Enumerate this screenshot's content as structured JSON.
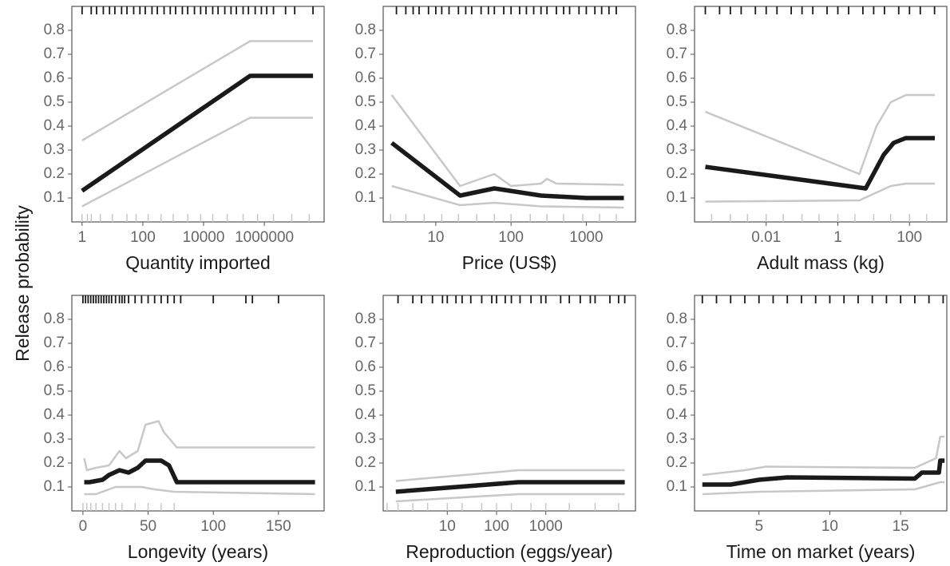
{
  "ylabel": "Release probability",
  "chart_data": [
    {
      "type": "line",
      "xlabel": "Quantity imported",
      "log_x": true,
      "xlim": [
        0.46,
        93000000
      ],
      "xticks": [
        1,
        100,
        10000,
        1000000
      ],
      "ylim": [
        0,
        0.9
      ],
      "yticks": [
        0.1,
        0.2,
        0.3,
        0.4,
        0.5,
        0.6,
        0.7,
        0.8
      ],
      "series": [
        {
          "color": "#c8c8c8",
          "x": [
            1,
            340000,
            40000000
          ],
          "values": [
            0.34,
            0.755,
            0.755
          ]
        },
        {
          "color": "#c8c8c8",
          "x": [
            1,
            340000,
            40000000
          ],
          "values": [
            0.065,
            0.435,
            0.435
          ]
        },
        {
          "color": "#1a1a1a",
          "x": [
            1,
            340000,
            40000000
          ],
          "values": [
            0.13,
            0.61,
            0.61
          ]
        }
      ],
      "rug_top_color": "#1a1a1a",
      "rug_bottom_color": "#c8c8c8",
      "rug_top": [
        1,
        2,
        3,
        5,
        8,
        12,
        20,
        30,
        50,
        80,
        120,
        200,
        300,
        500,
        800,
        1200,
        2000,
        3000,
        5000,
        8000,
        12000,
        20000,
        30000,
        50000,
        80000,
        120000,
        200000,
        300000,
        500000,
        800000,
        1200000,
        2000000,
        5000000,
        10000000,
        40000000
      ],
      "rug_bottom": [
        1,
        1.5,
        2,
        4,
        10,
        30,
        60,
        150,
        400,
        1000,
        3000,
        8000,
        20000,
        60000,
        200000,
        600000,
        2000000,
        8000000,
        30000000
      ]
    },
    {
      "type": "line",
      "xlabel": "Price (US$)",
      "log_x": true,
      "xlim": [
        2,
        4500
      ],
      "xticks": [
        10,
        100,
        1000
      ],
      "ylim": [
        0,
        0.9
      ],
      "yticks": [
        0.1,
        0.2,
        0.3,
        0.4,
        0.5,
        0.6,
        0.7,
        0.8
      ],
      "series": [
        {
          "color": "#c8c8c8",
          "x": [
            2.6,
            21,
            60,
            100,
            250,
            300,
            400,
            3160
          ],
          "values": [
            0.53,
            0.15,
            0.2,
            0.15,
            0.16,
            0.18,
            0.16,
            0.155
          ]
        },
        {
          "color": "#c8c8c8",
          "x": [
            2.6,
            21,
            60,
            250,
            3160
          ],
          "values": [
            0.15,
            0.07,
            0.08,
            0.065,
            0.06
          ]
        },
        {
          "color": "#1a1a1a",
          "x": [
            2.6,
            21,
            60,
            250,
            1000,
            3160
          ],
          "values": [
            0.33,
            0.11,
            0.14,
            0.11,
            0.1,
            0.1
          ]
        }
      ],
      "rug_top_color": "#1a1a1a",
      "rug_bottom_color": "#c8c8c8",
      "rug_top": [
        3,
        4,
        5,
        6,
        8,
        10,
        12,
        15,
        20,
        25,
        30,
        40,
        50,
        60,
        80,
        100,
        130,
        160,
        200,
        250,
        300,
        400,
        500,
        600,
        800,
        1000,
        1300,
        1600,
        2000,
        2500
      ],
      "rug_bottom": [
        2.5,
        4,
        7,
        12,
        20,
        35,
        60,
        100,
        180,
        300,
        500,
        900,
        1500,
        2500
      ]
    },
    {
      "type": "line",
      "xlabel": "Adult mass (kg)",
      "log_x": true,
      "xlim": [
        0.0001,
        1100
      ],
      "xticks": [
        0.01,
        1,
        100
      ],
      "ylim": [
        0,
        0.9
      ],
      "yticks": [
        0.1,
        0.2,
        0.3,
        0.4,
        0.5,
        0.6,
        0.7,
        0.8
      ],
      "series": [
        {
          "color": "#c8c8c8",
          "x": [
            0.0002,
            4,
            12,
            30,
            80,
            510
          ],
          "values": [
            0.46,
            0.2,
            0.4,
            0.5,
            0.53,
            0.53
          ]
        },
        {
          "color": "#c8c8c8",
          "x": [
            0.0002,
            4,
            30,
            80,
            510
          ],
          "values": [
            0.085,
            0.09,
            0.15,
            0.16,
            0.16
          ]
        },
        {
          "color": "#1a1a1a",
          "x": [
            0.0002,
            6,
            19,
            36,
            78,
            510
          ],
          "values": [
            0.23,
            0.14,
            0.28,
            0.33,
            0.35,
            0.35
          ]
        }
      ],
      "rug_top_color": "#1a1a1a",
      "rug_bottom_color": "#c8c8c8",
      "rug_top": [
        0.0002,
        0.0005,
        0.001,
        0.002,
        0.005,
        0.01,
        0.02,
        0.05,
        0.1,
        0.2,
        0.5,
        1,
        2,
        5,
        10,
        20,
        50,
        100,
        200,
        500
      ],
      "rug_bottom": [
        0.0003,
        0.001,
        0.003,
        0.01,
        0.03,
        0.1,
        0.3,
        1,
        3,
        10,
        30,
        100,
        300
      ]
    },
    {
      "type": "line",
      "xlabel": "Longevity (years)",
      "log_x": false,
      "xlim": [
        -8.5,
        185
      ],
      "xticks": [
        0,
        50,
        100,
        150
      ],
      "ylim": [
        0,
        0.9
      ],
      "yticks": [
        0.1,
        0.2,
        0.3,
        0.4,
        0.5,
        0.6,
        0.7,
        0.8
      ],
      "series": [
        {
          "color": "#c8c8c8",
          "x": [
            1,
            3,
            10,
            20,
            28,
            33,
            42,
            48,
            58,
            62,
            72,
            178
          ],
          "values": [
            0.22,
            0.17,
            0.18,
            0.19,
            0.25,
            0.22,
            0.25,
            0.36,
            0.375,
            0.33,
            0.265,
            0.265
          ]
        },
        {
          "color": "#c8c8c8",
          "x": [
            1,
            10,
            25,
            45,
            55,
            70,
            178
          ],
          "values": [
            0.07,
            0.07,
            0.1,
            0.1,
            0.09,
            0.08,
            0.07
          ]
        },
        {
          "color": "#1a1a1a",
          "x": [
            1,
            5,
            10,
            15,
            20,
            28,
            35,
            42,
            48,
            55,
            60,
            66,
            72,
            178
          ],
          "values": [
            0.12,
            0.12,
            0.125,
            0.13,
            0.15,
            0.17,
            0.16,
            0.18,
            0.21,
            0.21,
            0.21,
            0.19,
            0.12,
            0.12
          ]
        }
      ],
      "rug_top_color": "#1a1a1a",
      "rug_bottom_color": "#c8c8c8",
      "rug_top": [
        0,
        2,
        4,
        6,
        8,
        10,
        12,
        14,
        16,
        18,
        20,
        22,
        25,
        28,
        30,
        32,
        35,
        40,
        45,
        50,
        55,
        60,
        65,
        70,
        75,
        100,
        125,
        130,
        150
      ],
      "rug_bottom": [
        0,
        3,
        6,
        10,
        15,
        20,
        25,
        30,
        40,
        50,
        60,
        70
      ]
    },
    {
      "type": "line",
      "xlabel": "Reproduction (eggs/year)",
      "log_x": true,
      "xlim": [
        0.5,
        66000
      ],
      "xticks": [
        10,
        100,
        1000
      ],
      "ylim": [
        0,
        0.9
      ],
      "yticks": [
        0.1,
        0.2,
        0.3,
        0.4,
        0.5,
        0.6,
        0.7,
        0.8
      ],
      "series": [
        {
          "color": "#c8c8c8",
          "x": [
            0.9,
            280,
            40000
          ],
          "values": [
            0.125,
            0.17,
            0.17
          ]
        },
        {
          "color": "#c8c8c8",
          "x": [
            0.9,
            280,
            40000
          ],
          "values": [
            0.04,
            0.07,
            0.07
          ]
        },
        {
          "color": "#1a1a1a",
          "x": [
            0.9,
            280,
            40000
          ],
          "values": [
            0.08,
            0.12,
            0.12
          ]
        }
      ],
      "rug_top_color": "#1a1a1a",
      "rug_bottom_color": "#c8c8c8",
      "rug_top": [
        1,
        2,
        3,
        5,
        8,
        10,
        15,
        20,
        30,
        50,
        80,
        100,
        150,
        200,
        300,
        500,
        800,
        1000,
        2000,
        3000,
        5000,
        8000,
        10000,
        20000,
        30000,
        40000
      ],
      "rug_bottom": [
        0.6,
        1,
        2,
        4,
        10,
        20,
        50,
        100,
        200,
        500,
        1000,
        3000,
        10000,
        30000
      ]
    },
    {
      "type": "line",
      "xlabel": "Time on market (years)",
      "log_x": false,
      "xlim": [
        0.45,
        18.26
      ],
      "xticks": [
        5,
        10,
        15
      ],
      "ylim": [
        0,
        0.9
      ],
      "yticks": [
        0.1,
        0.2,
        0.3,
        0.4,
        0.5,
        0.6,
        0.7,
        0.8
      ],
      "series": [
        {
          "color": "#c8c8c8",
          "x": [
            1,
            4,
            5.5,
            16,
            17.5,
            17.8,
            18.1
          ],
          "values": [
            0.15,
            0.17,
            0.185,
            0.18,
            0.22,
            0.31,
            0.31
          ]
        },
        {
          "color": "#c8c8c8",
          "x": [
            1,
            5,
            16,
            17.8,
            18.1
          ],
          "values": [
            0.07,
            0.08,
            0.09,
            0.12,
            0.12
          ]
        },
        {
          "color": "#1a1a1a",
          "x": [
            1,
            3,
            4,
            5,
            6,
            7,
            16,
            16.5,
            17.7,
            17.8,
            18.1
          ],
          "values": [
            0.11,
            0.11,
            0.12,
            0.13,
            0.135,
            0.14,
            0.135,
            0.16,
            0.16,
            0.21,
            0.21
          ]
        }
      ],
      "rug_top_color": "#1a1a1a",
      "rug_top": [
        1,
        2,
        3,
        4,
        5,
        6,
        7,
        8,
        9,
        10,
        11,
        12,
        13,
        14,
        15,
        16,
        17,
        18
      ]
    }
  ]
}
